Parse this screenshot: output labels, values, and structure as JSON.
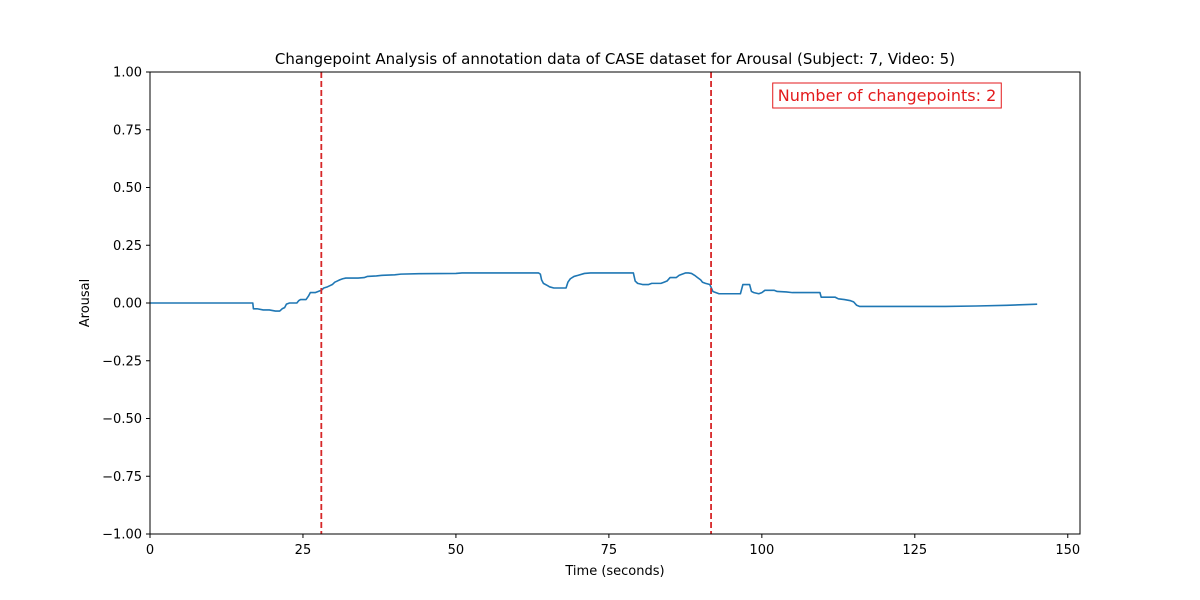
{
  "chart_data": {
    "type": "line",
    "title": "Changepoint Analysis of annotation data of CASE dataset for Arousal (Subject: 7, Video: 5)",
    "xlabel": "Time (seconds)",
    "ylabel": "Arousal",
    "xlim": [
      0,
      152
    ],
    "ylim": [
      -1.0,
      1.0
    ],
    "x_ticks": [
      0,
      25,
      50,
      75,
      100,
      125,
      150
    ],
    "x_tick_labels": [
      "0",
      "25",
      "50",
      "75",
      "100",
      "125",
      "150"
    ],
    "y_ticks": [
      -1.0,
      -0.75,
      -0.5,
      -0.25,
      0.0,
      0.25,
      0.5,
      0.75,
      1.0
    ],
    "y_tick_labels": [
      "−1.00",
      "−0.75",
      "−0.50",
      "−0.25",
      "0.00",
      "0.25",
      "0.50",
      "0.75",
      "1.00"
    ],
    "grid": false,
    "series": [
      {
        "color": "#1f77b4",
        "x": [
          0,
          16.8,
          16.9,
          17.5,
          18.5,
          19.5,
          20.5,
          21.2,
          21.6,
          22.0,
          22.3,
          22.8,
          24.0,
          24.3,
          24.6,
          25.5,
          25.9,
          26.2,
          27.0,
          28.0,
          28.4,
          29.0,
          29.4,
          29.8,
          30.2,
          30.6,
          31.0,
          31.5,
          32.0,
          33.0,
          34.0,
          35.0,
          35.5,
          37.0,
          38.0,
          40.0,
          41.0,
          44.0,
          50.0,
          51.0,
          56.0,
          63.5,
          63.8,
          64.0,
          64.3,
          65.0,
          65.3,
          66.0,
          68.0,
          68.3,
          68.7,
          69.3,
          70.0,
          71.0,
          72.0,
          74.0,
          79.0,
          79.3,
          79.7,
          80.5,
          81.5,
          82.0,
          83.5,
          84.0,
          84.5,
          85.0,
          86.0,
          86.5,
          87.0,
          87.5,
          88.0,
          88.5,
          89.0,
          89.5,
          90.0,
          90.3,
          90.8,
          91.5,
          92.0,
          92.5,
          93.0,
          95.0,
          96.5,
          96.9,
          97.5,
          98.0,
          98.3,
          98.7,
          99.5,
          100.0,
          100.5,
          102.0,
          102.5,
          104.0,
          105.0,
          107.0,
          109.5,
          109.7,
          112.0,
          112.5,
          113.5,
          114.5,
          115.0,
          115.5,
          116.0,
          125.0,
          130.0,
          135.0,
          140.0,
          145.0
        ],
        "y": [
          0.0,
          0.0,
          -0.025,
          -0.025,
          -0.03,
          -0.03,
          -0.035,
          -0.035,
          -0.025,
          -0.02,
          -0.005,
          0.0,
          0.0,
          0.01,
          0.015,
          0.015,
          0.03,
          0.045,
          0.045,
          0.055,
          0.065,
          0.07,
          0.075,
          0.08,
          0.09,
          0.095,
          0.1,
          0.105,
          0.108,
          0.108,
          0.108,
          0.11,
          0.115,
          0.117,
          0.12,
          0.122,
          0.125,
          0.127,
          0.128,
          0.13,
          0.13,
          0.13,
          0.125,
          0.1,
          0.085,
          0.075,
          0.07,
          0.065,
          0.065,
          0.09,
          0.105,
          0.115,
          0.12,
          0.128,
          0.13,
          0.13,
          0.13,
          0.095,
          0.085,
          0.08,
          0.08,
          0.085,
          0.085,
          0.09,
          0.095,
          0.11,
          0.11,
          0.12,
          0.125,
          0.13,
          0.13,
          0.128,
          0.12,
          0.11,
          0.1,
          0.09,
          0.085,
          0.08,
          0.05,
          0.045,
          0.04,
          0.04,
          0.04,
          0.08,
          0.08,
          0.08,
          0.05,
          0.045,
          0.04,
          0.045,
          0.055,
          0.055,
          0.05,
          0.048,
          0.045,
          0.045,
          0.045,
          0.025,
          0.025,
          0.018,
          0.015,
          0.01,
          0.005,
          -0.01,
          -0.015,
          -0.015,
          -0.015,
          -0.013,
          -0.01,
          -0.005
        ]
      }
    ],
    "changepoints": [
      28.0,
      91.7
    ],
    "changepoint_color": "#d62728",
    "annotation": "Number of changepoints: 2",
    "annotation_color": "#e31a1c",
    "annotation_placement": "top-right"
  }
}
